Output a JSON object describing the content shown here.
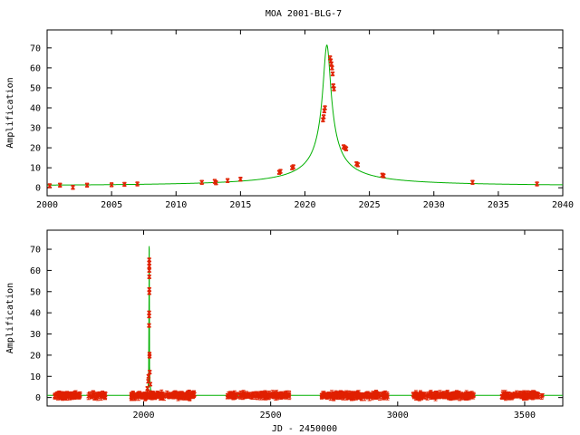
{
  "title": "MOA 2001-BLG-7",
  "chart_data": [
    {
      "type": "scatter",
      "ylabel": "Amplification",
      "xlabel": "",
      "xlim": [
        2000,
        2040
      ],
      "ylim": [
        -4,
        79
      ],
      "xticks": [
        2000,
        2005,
        2010,
        2015,
        2020,
        2025,
        2030,
        2035,
        2040
      ],
      "yticks": [
        0,
        10,
        20,
        30,
        40,
        50,
        60,
        70
      ],
      "grid": false,
      "model": {
        "t0": 2021.7,
        "u0": 0.014,
        "tE": 21.5,
        "color": "#00b000"
      },
      "points_color": "#e02000",
      "points": [
        [
          2000.2,
          1.0
        ],
        [
          2001.0,
          1.3
        ],
        [
          2002.0,
          0.2
        ],
        [
          2003.1,
          1.3
        ],
        [
          2005.0,
          1.5
        ],
        [
          2006.0,
          1.7
        ],
        [
          2007.0,
          1.9
        ],
        [
          2012.0,
          2.7
        ],
        [
          2013.0,
          3.2
        ],
        [
          2013.1,
          2.5
        ],
        [
          2014.0,
          3.6
        ],
        [
          2015.0,
          4.3
        ],
        [
          2018.0,
          7.7
        ],
        [
          2018.1,
          8.2
        ],
        [
          2019.0,
          10.0
        ],
        [
          2019.1,
          10.5
        ],
        [
          2021.4,
          34.0
        ],
        [
          2021.45,
          35.5
        ],
        [
          2021.5,
          38.5
        ],
        [
          2021.55,
          40.0
        ],
        [
          2021.95,
          65.0
        ],
        [
          2022.0,
          63.5
        ],
        [
          2022.05,
          62.0
        ],
        [
          2022.1,
          60.0
        ],
        [
          2022.15,
          57.0
        ],
        [
          2022.2,
          51.0
        ],
        [
          2022.25,
          49.5
        ],
        [
          2023.0,
          20.5
        ],
        [
          2023.1,
          20.0
        ],
        [
          2023.2,
          19.5
        ],
        [
          2024.0,
          12.0
        ],
        [
          2024.1,
          11.5
        ],
        [
          2026.0,
          6.3
        ],
        [
          2026.1,
          6.0
        ],
        [
          2033.0,
          2.7
        ],
        [
          2038.0,
          1.9
        ]
      ]
    },
    {
      "type": "scatter",
      "ylabel": "Amplification",
      "xlabel": "JD - 2450000",
      "xlim": [
        1620,
        3650
      ],
      "ylim": [
        -4,
        79
      ],
      "xticks": [
        2000,
        2500,
        3000,
        3500
      ],
      "yticks": [
        0,
        10,
        20,
        30,
        40,
        50,
        60,
        70
      ],
      "grid": false,
      "model": {
        "t0": 2021.7,
        "u0": 0.014,
        "tE": 21.5,
        "color": "#00b000"
      },
      "points_color": "#e02000",
      "baseline_segments": [
        {
          "start": 1650,
          "end": 1750,
          "count": 70
        },
        {
          "start": 1780,
          "end": 1850,
          "count": 25
        },
        {
          "start": 1950,
          "end": 2200,
          "count": 150
        },
        {
          "start": 2330,
          "end": 2580,
          "count": 110
        },
        {
          "start": 2700,
          "end": 2960,
          "count": 140
        },
        {
          "start": 3060,
          "end": 3300,
          "count": 130
        },
        {
          "start": 3410,
          "end": 3570,
          "count": 90
        }
      ],
      "peak_points": [
        [
          2021.4,
          34.0
        ],
        [
          2021.5,
          38.5
        ],
        [
          2021.55,
          40.0
        ],
        [
          2021.95,
          65.0
        ],
        [
          2022.0,
          63.5
        ],
        [
          2022.05,
          62.0
        ],
        [
          2022.1,
          60.0
        ],
        [
          2022.15,
          57.0
        ],
        [
          2022.2,
          51.0
        ],
        [
          2022.25,
          49.5
        ],
        [
          2023.0,
          20.5
        ],
        [
          2023.2,
          19.5
        ],
        [
          2024.0,
          12.0
        ],
        [
          2018.0,
          7.7
        ],
        [
          2019.0,
          10.0
        ],
        [
          2026.0,
          6.3
        ],
        [
          2015.0,
          4.3
        ]
      ]
    }
  ]
}
